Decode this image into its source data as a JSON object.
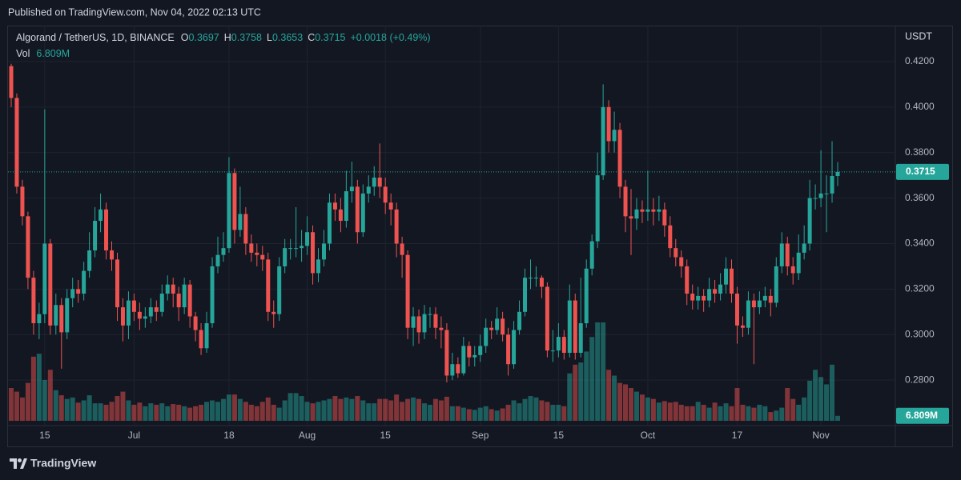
{
  "published": "Published on TradingView.com, Nov 04, 2022 02:13 UTC",
  "brand": "TradingView",
  "chart_data": {
    "type": "candlestick",
    "title": "Algorand / TetherUS, 1D, BINANCE",
    "ohlc_prefixes": [
      "O",
      "H",
      "L",
      "C"
    ],
    "change_label": "+0.0018 (+0.49%)",
    "volume_name": "Vol",
    "volume_label": "6.809M",
    "y_axis_label": "USDT",
    "up_color": "#26a69a",
    "down_color": "#ef5350",
    "grid": true,
    "categories": [
      null,
      null,
      null,
      null,
      null,
      null,
      "15",
      null,
      null,
      null,
      null,
      null,
      null,
      null,
      null,
      null,
      null,
      null,
      null,
      null,
      null,
      null,
      "Jul",
      null,
      null,
      null,
      null,
      null,
      null,
      null,
      null,
      null,
      null,
      null,
      null,
      null,
      null,
      null,
      null,
      "18",
      null,
      null,
      null,
      null,
      null,
      null,
      null,
      null,
      null,
      null,
      null,
      null,
      null,
      "Aug",
      null,
      null,
      null,
      null,
      null,
      null,
      null,
      null,
      null,
      null,
      null,
      null,
      null,
      "15",
      null,
      null,
      null,
      null,
      null,
      null,
      null,
      null,
      null,
      null,
      null,
      null,
      null,
      null,
      null,
      null,
      "Sep",
      null,
      null,
      null,
      null,
      null,
      null,
      null,
      null,
      null,
      null,
      null,
      null,
      null,
      "15",
      null,
      null,
      null,
      null,
      null,
      null,
      null,
      null,
      null,
      null,
      null,
      null,
      null,
      null,
      null,
      "Oct",
      null,
      null,
      null,
      null,
      null,
      null,
      null,
      null,
      null,
      null,
      null,
      null,
      null,
      null,
      null,
      "17",
      null,
      null,
      null,
      null,
      null,
      null,
      null,
      null,
      null,
      null,
      null,
      null,
      null,
      null,
      "Nov",
      null,
      null,
      null
    ],
    "open": [
      0.418,
      0.404,
      0.365,
      0.352,
      0.325,
      0.305,
      0.309,
      0.34,
      0.304,
      0.313,
      0.301,
      0.316,
      0.32,
      0.318,
      0.328,
      0.337,
      0.35,
      0.355,
      0.337,
      0.333,
      0.312,
      0.304,
      0.315,
      0.31,
      0.307,
      0.308,
      0.312,
      0.31,
      0.318,
      0.322,
      0.318,
      0.312,
      0.322,
      0.308,
      0.302,
      0.294,
      0.305,
      0.33,
      0.335,
      0.338,
      0.371,
      0.346,
      0.353,
      0.34,
      0.336,
      0.335,
      0.333,
      0.31,
      0.309,
      0.33,
      0.338,
      0.338,
      0.338,
      0.339,
      0.345,
      0.327,
      0.333,
      0.34,
      0.358,
      0.355,
      0.35,
      0.363,
      0.365,
      0.345,
      0.362,
      0.365,
      0.369,
      0.365,
      0.358,
      0.355,
      0.34,
      0.335,
      0.303,
      0.308,
      0.301,
      0.309,
      0.309,
      0.303,
      0.302,
      0.282,
      0.287,
      0.283,
      0.295,
      0.29,
      0.291,
      0.295,
      0.303,
      0.302,
      0.307,
      0.3,
      0.287,
      0.302,
      0.31,
      0.325,
      0.325,
      0.325,
      0.321,
      0.293,
      0.293,
      0.299,
      0.292,
      0.315,
      0.292,
      0.305,
      0.329,
      0.341,
      0.37,
      0.4,
      0.385,
      0.39,
      0.365,
      0.352,
      0.351,
      0.355,
      0.354,
      0.355,
      0.354,
      0.355,
      0.348,
      0.338,
      0.334,
      0.33,
      0.318,
      0.315,
      0.317,
      0.315,
      0.32,
      0.318,
      0.322,
      0.329,
      0.318,
      0.304,
      0.303,
      0.315,
      0.312,
      0.315,
      0.317,
      0.314,
      0.33,
      0.34,
      0.33,
      0.327,
      0.336,
      0.34,
      0.36,
      0.36,
      0.362,
      0.362,
      0.3697
    ],
    "high": [
      0.419,
      0.406,
      0.368,
      0.354,
      0.328,
      0.314,
      0.399,
      0.342,
      0.318,
      0.316,
      0.32,
      0.325,
      0.324,
      0.332,
      0.345,
      0.356,
      0.362,
      0.358,
      0.341,
      0.336,
      0.316,
      0.319,
      0.318,
      0.314,
      0.312,
      0.316,
      0.315,
      0.322,
      0.326,
      0.325,
      0.321,
      0.325,
      0.324,
      0.31,
      0.305,
      0.31,
      0.334,
      0.343,
      0.345,
      0.378,
      0.373,
      0.365,
      0.356,
      0.344,
      0.34,
      0.339,
      0.336,
      0.315,
      0.334,
      0.342,
      0.342,
      0.356,
      0.346,
      0.352,
      0.348,
      0.338,
      0.346,
      0.362,
      0.362,
      0.36,
      0.372,
      0.376,
      0.368,
      0.366,
      0.37,
      0.374,
      0.384,
      0.369,
      0.362,
      0.358,
      0.343,
      0.337,
      0.312,
      0.311,
      0.313,
      0.312,
      0.312,
      0.308,
      0.305,
      0.292,
      0.29,
      0.299,
      0.297,
      0.295,
      0.3,
      0.307,
      0.306,
      0.312,
      0.31,
      0.303,
      0.306,
      0.315,
      0.329,
      0.333,
      0.33,
      0.326,
      0.323,
      0.302,
      0.305,
      0.302,
      0.322,
      0.318,
      0.325,
      0.333,
      0.344,
      0.38,
      0.41,
      0.403,
      0.398,
      0.393,
      0.368,
      0.364,
      0.36,
      0.359,
      0.372,
      0.36,
      0.361,
      0.358,
      0.352,
      0.342,
      0.337,
      0.333,
      0.322,
      0.321,
      0.32,
      0.325,
      0.324,
      0.327,
      0.334,
      0.333,
      0.321,
      0.308,
      0.319,
      0.318,
      0.319,
      0.321,
      0.32,
      0.334,
      0.345,
      0.343,
      0.334,
      0.344,
      0.348,
      0.368,
      0.366,
      0.381,
      0.37,
      0.385,
      0.3758
    ],
    "low": [
      0.4,
      0.362,
      0.348,
      0.32,
      0.3,
      0.298,
      0.305,
      0.3,
      0.3,
      0.285,
      0.298,
      0.312,
      0.314,
      0.315,
      0.325,
      0.334,
      0.345,
      0.333,
      0.328,
      0.306,
      0.297,
      0.298,
      0.306,
      0.302,
      0.303,
      0.305,
      0.306,
      0.308,
      0.315,
      0.312,
      0.306,
      0.309,
      0.303,
      0.297,
      0.291,
      0.292,
      0.303,
      0.327,
      0.332,
      0.336,
      0.34,
      0.343,
      0.335,
      0.332,
      0.33,
      0.328,
      0.306,
      0.303,
      0.306,
      0.327,
      0.333,
      0.334,
      0.332,
      0.335,
      0.322,
      0.323,
      0.33,
      0.337,
      0.35,
      0.345,
      0.347,
      0.358,
      0.34,
      0.343,
      0.358,
      0.361,
      0.36,
      0.353,
      0.348,
      0.334,
      0.325,
      0.298,
      0.295,
      0.296,
      0.298,
      0.303,
      0.298,
      0.294,
      0.279,
      0.28,
      0.281,
      0.282,
      0.286,
      0.286,
      0.288,
      0.292,
      0.298,
      0.3,
      0.297,
      0.282,
      0.285,
      0.3,
      0.308,
      0.32,
      0.321,
      0.316,
      0.29,
      0.288,
      0.29,
      0.289,
      0.29,
      0.289,
      0.29,
      0.303,
      0.326,
      0.338,
      0.368,
      0.38,
      0.38,
      0.36,
      0.345,
      0.335,
      0.346,
      0.349,
      0.35,
      0.348,
      0.35,
      0.343,
      0.334,
      0.33,
      0.325,
      0.313,
      0.311,
      0.311,
      0.31,
      0.312,
      0.314,
      0.315,
      0.318,
      0.314,
      0.296,
      0.299,
      0.3,
      0.287,
      0.309,
      0.312,
      0.308,
      0.312,
      0.327,
      0.326,
      0.322,
      0.324,
      0.333,
      0.337,
      0.355,
      0.356,
      0.345,
      0.358,
      0.3653
    ],
    "close": [
      0.404,
      0.365,
      0.352,
      0.325,
      0.305,
      0.309,
      0.34,
      0.304,
      0.313,
      0.301,
      0.316,
      0.32,
      0.318,
      0.328,
      0.337,
      0.35,
      0.355,
      0.337,
      0.333,
      0.312,
      0.304,
      0.315,
      0.31,
      0.307,
      0.308,
      0.312,
      0.31,
      0.318,
      0.322,
      0.318,
      0.312,
      0.322,
      0.308,
      0.302,
      0.294,
      0.305,
      0.33,
      0.335,
      0.338,
      0.371,
      0.346,
      0.353,
      0.34,
      0.336,
      0.335,
      0.333,
      0.31,
      0.309,
      0.33,
      0.338,
      0.338,
      0.338,
      0.339,
      0.345,
      0.327,
      0.333,
      0.34,
      0.358,
      0.355,
      0.35,
      0.363,
      0.365,
      0.345,
      0.362,
      0.365,
      0.369,
      0.365,
      0.358,
      0.355,
      0.34,
      0.335,
      0.303,
      0.308,
      0.301,
      0.309,
      0.309,
      0.303,
      0.302,
      0.282,
      0.287,
      0.283,
      0.295,
      0.29,
      0.291,
      0.295,
      0.303,
      0.302,
      0.307,
      0.3,
      0.287,
      0.302,
      0.31,
      0.325,
      0.325,
      0.325,
      0.321,
      0.293,
      0.293,
      0.299,
      0.292,
      0.315,
      0.292,
      0.305,
      0.329,
      0.341,
      0.37,
      0.4,
      0.385,
      0.39,
      0.365,
      0.352,
      0.351,
      0.355,
      0.354,
      0.355,
      0.354,
      0.355,
      0.348,
      0.338,
      0.334,
      0.33,
      0.318,
      0.315,
      0.317,
      0.315,
      0.32,
      0.318,
      0.322,
      0.329,
      0.318,
      0.304,
      0.303,
      0.315,
      0.312,
      0.315,
      0.317,
      0.314,
      0.33,
      0.34,
      0.33,
      0.327,
      0.336,
      0.34,
      0.36,
      0.36,
      0.362,
      0.362,
      0.3697,
      0.3715
    ],
    "volume": [
      45,
      40,
      32,
      52,
      88,
      92,
      56,
      70,
      42,
      35,
      30,
      32,
      25,
      28,
      35,
      24,
      24,
      22,
      26,
      34,
      40,
      28,
      22,
      25,
      20,
      24,
      22,
      24,
      20,
      23,
      22,
      20,
      18,
      20,
      22,
      26,
      28,
      26,
      30,
      36,
      36,
      30,
      26,
      22,
      20,
      26,
      32,
      22,
      18,
      28,
      38,
      38,
      34,
      26,
      24,
      26,
      28,
      30,
      34,
      30,
      32,
      30,
      34,
      28,
      24,
      24,
      30,
      30,
      28,
      36,
      26,
      30,
      32,
      30,
      24,
      22,
      30,
      28,
      33,
      20,
      20,
      18,
      16,
      15,
      18,
      20,
      16,
      14,
      17,
      22,
      28,
      24,
      30,
      34,
      32,
      28,
      26,
      22,
      22,
      20,
      65,
      77,
      80,
      95,
      115,
      135,
      135,
      70,
      62,
      52,
      50,
      45,
      40,
      36,
      32,
      30,
      25,
      27,
      25,
      26,
      22,
      20,
      20,
      26,
      22,
      18,
      25,
      20,
      24,
      20,
      45,
      22,
      20,
      18,
      22,
      20,
      12,
      14,
      18,
      45,
      30,
      22,
      32,
      55,
      70,
      60,
      50,
      77,
      6.809
    ],
    "ylim": [
      0.26,
      0.4358
    ],
    "yticks": [
      {
        "value": 0.28,
        "label": "0.2800"
      },
      {
        "value": 0.3,
        "label": "0.3000"
      },
      {
        "value": 0.32,
        "label": "0.3200"
      },
      {
        "value": 0.34,
        "label": "0.3400"
      },
      {
        "value": 0.36,
        "label": "0.3600"
      },
      {
        "value": 0.38,
        "label": "0.3800"
      },
      {
        "value": 0.4,
        "label": "0.4000"
      },
      {
        "value": 0.42,
        "label": "0.4200"
      }
    ]
  }
}
